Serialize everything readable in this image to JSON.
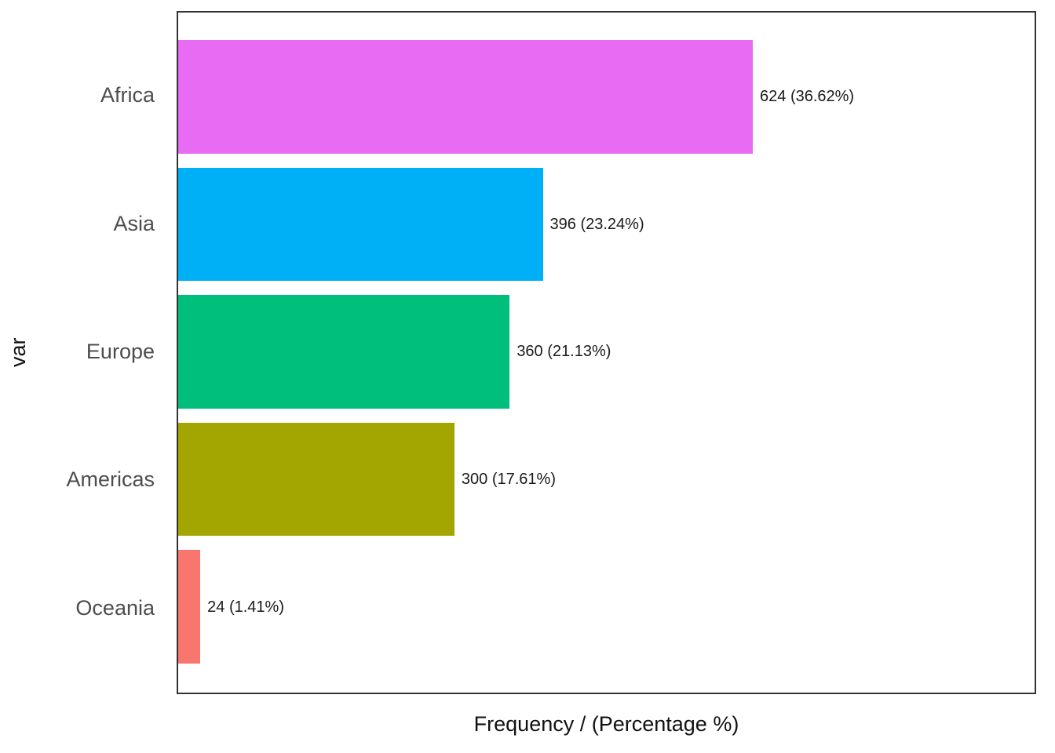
{
  "chart_data": {
    "type": "bar",
    "orientation": "horizontal",
    "title": "",
    "xlabel": "Frequency / (Percentage %)",
    "ylabel": "var",
    "categories": [
      "Africa",
      "Asia",
      "Europe",
      "Americas",
      "Oceania"
    ],
    "values": [
      624,
      396,
      360,
      300,
      24
    ],
    "percentages": [
      36.62,
      23.24,
      21.13,
      17.61,
      1.41
    ],
    "value_labels": [
      "624 (36.62%)",
      "396 (23.24%)",
      "360 (21.13%)",
      "300 (17.61%)",
      "24 (1.41%)"
    ],
    "bar_colors": [
      "#E76BF3",
      "#00B0F6",
      "#00BF7D",
      "#A3A500",
      "#F8766D"
    ],
    "xlim": [
      0,
      930
    ],
    "grid": false,
    "legend": false,
    "panel_border_color": "#333333",
    "category_label_color": "#4d4d4d",
    "value_label_color": "#1a1a1a"
  }
}
